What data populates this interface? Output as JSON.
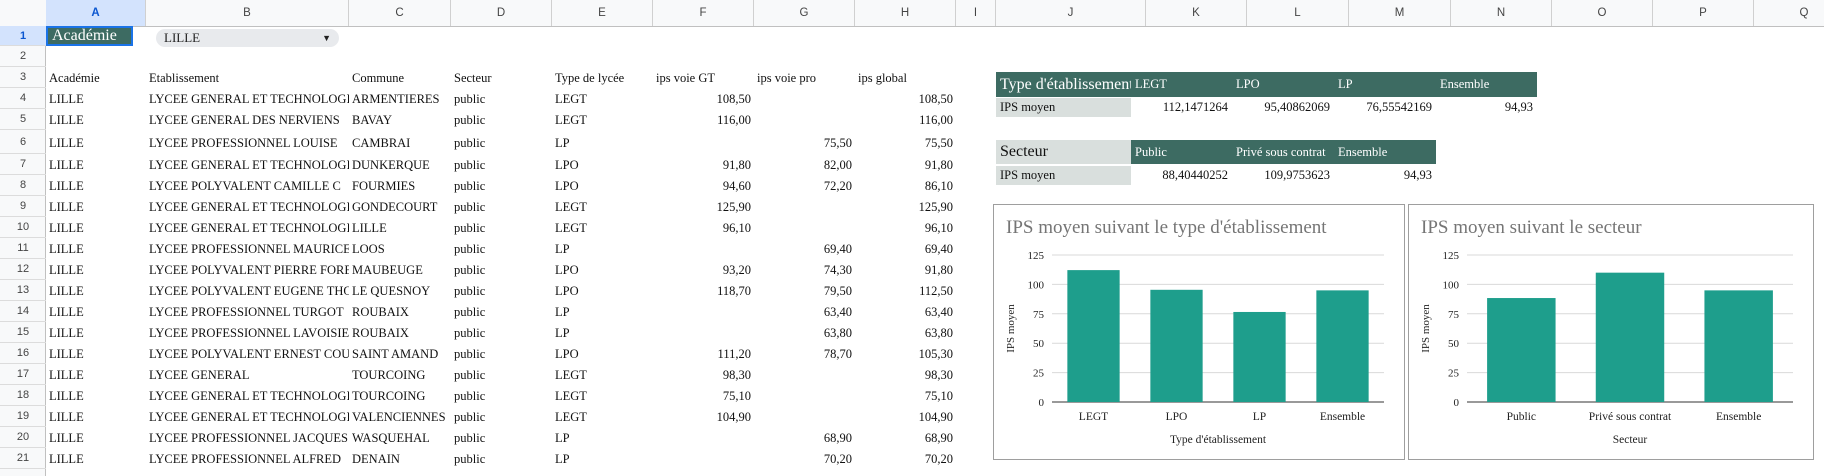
{
  "columns": [
    "A",
    "B",
    "C",
    "D",
    "E",
    "F",
    "G",
    "H",
    "I",
    "J",
    "K",
    "L",
    "M",
    "N",
    "O",
    "P",
    "Q"
  ],
  "row_numbers": [
    "1",
    "2",
    "3",
    "4",
    "5",
    "6",
    "7",
    "8",
    "9",
    "10",
    "11",
    "12",
    "13",
    "14",
    "15",
    "16",
    "17",
    "18",
    "19",
    "20",
    "21"
  ],
  "selector": {
    "label": "Académie",
    "value": "LILLE"
  },
  "table": {
    "headers": [
      "Académie",
      "Etablissement",
      "Commune",
      "Secteur",
      "Type de lycée",
      "ips voie GT",
      "ips voie pro",
      "ips global"
    ],
    "rows": [
      [
        "LILLE",
        "LYCEE GENERAL ET TECHNOLOGIQUE",
        "ARMENTIERES",
        "public",
        "LEGT",
        "108,50",
        "",
        "108,50"
      ],
      [
        "LILLE",
        "LYCEE GENERAL DES NERVIENS",
        "BAVAY",
        "public",
        "LEGT",
        "116,00",
        "",
        "116,00"
      ],
      [
        "LILLE",
        "LYCEE PROFESSIONNEL LOUISE",
        "CAMBRAI",
        "public",
        "LP",
        "",
        "75,50",
        "75,50"
      ],
      [
        "LILLE",
        "LYCEE GENERAL ET TECHNOLOGIQUE",
        "DUNKERQUE",
        "public",
        "LPO",
        "91,80",
        "82,00",
        "91,80"
      ],
      [
        "LILLE",
        "LYCEE POLYVALENT CAMILLE C",
        "FOURMIES",
        "public",
        "LPO",
        "94,60",
        "72,20",
        "86,10"
      ],
      [
        "LILLE",
        "LYCEE GENERAL ET TECHNOLOGIQUE",
        "GONDECOURT",
        "public",
        "LEGT",
        "125,90",
        "",
        "125,90"
      ],
      [
        "LILLE",
        "LYCEE GENERAL ET TECHNOLOGIQUE",
        "LILLE",
        "public",
        "LEGT",
        "96,10",
        "",
        "96,10"
      ],
      [
        "LILLE",
        "LYCEE PROFESSIONNEL MAURICE",
        "LOOS",
        "public",
        "LP",
        "",
        "69,40",
        "69,40"
      ],
      [
        "LILLE",
        "LYCEE POLYVALENT PIERRE FOREST",
        "MAUBEUGE",
        "public",
        "LPO",
        "93,20",
        "74,30",
        "91,80"
      ],
      [
        "LILLE",
        "LYCEE POLYVALENT EUGENE THOMAS",
        "LE QUESNOY",
        "public",
        "LPO",
        "118,70",
        "79,50",
        "112,50"
      ],
      [
        "LILLE",
        "LYCEE PROFESSIONNEL TURGOT",
        "ROUBAIX",
        "public",
        "LP",
        "",
        "63,40",
        "63,40"
      ],
      [
        "LILLE",
        "LYCEE PROFESSIONNEL LAVOISIER",
        "ROUBAIX",
        "public",
        "LP",
        "",
        "63,80",
        "63,80"
      ],
      [
        "LILLE",
        "LYCEE POLYVALENT ERNEST COUTEAUX",
        "SAINT AMAND",
        "public",
        "LPO",
        "111,20",
        "78,70",
        "105,30"
      ],
      [
        "LILLE",
        "LYCEE GENERAL",
        "TOURCOING",
        "public",
        "LEGT",
        "98,30",
        "",
        "98,30"
      ],
      [
        "LILLE",
        "LYCEE GENERAL ET TECHNOLOGIQUE",
        "TOURCOING",
        "public",
        "LEGT",
        "75,10",
        "",
        "75,10"
      ],
      [
        "LILLE",
        "LYCEE GENERAL ET TECHNOLOGIQUE",
        "VALENCIENNES",
        "public",
        "LEGT",
        "104,90",
        "",
        "104,90"
      ],
      [
        "LILLE",
        "LYCEE PROFESSIONNEL JACQUES",
        "WASQUEHAL",
        "public",
        "LP",
        "",
        "68,90",
        "68,90"
      ],
      [
        "LILLE",
        "LYCEE PROFESSIONNEL ALFRED",
        "DENAIN",
        "public",
        "LP",
        "",
        "70,20",
        "70,20"
      ]
    ]
  },
  "summary_type": {
    "title": "Type d'établissement",
    "headers": [
      "LEGT",
      "LPO",
      "LP",
      "Ensemble"
    ],
    "row_label": "IPS moyen",
    "values": [
      "112,1471264",
      "95,40862069",
      "76,55542169",
      "94,93"
    ]
  },
  "summary_secteur": {
    "title": "Secteur",
    "headers": [
      "Public",
      "Privé sous contrat",
      "Ensemble"
    ],
    "row_label": "IPS moyen",
    "values": [
      "88,40440252",
      "109,9753623",
      "94,93"
    ]
  },
  "chart_data": [
    {
      "type": "bar",
      "title": "IPS moyen suivant le type d'établissement",
      "xlabel": "Type d'établissement",
      "ylabel": "IPS moyen",
      "categories": [
        "LEGT",
        "LPO",
        "LP",
        "Ensemble"
      ],
      "values": [
        112.15,
        95.41,
        76.56,
        94.93
      ],
      "ylim": [
        0,
        125
      ],
      "yticks": [
        "0",
        "25",
        "50",
        "75",
        "100",
        "125"
      ],
      "color": "#1e9e8c",
      "grid": true
    },
    {
      "type": "bar",
      "title": "IPS moyen suivant le secteur",
      "xlabel": "Secteur",
      "ylabel": "IPS moyen",
      "categories": [
        "Public",
        "Privé sous contrat",
        "Ensemble"
      ],
      "values": [
        88.4,
        109.98,
        94.93
      ],
      "ylim": [
        0,
        125
      ],
      "yticks": [
        "0",
        "25",
        "50",
        "75",
        "100",
        "125"
      ],
      "color": "#1e9e8c",
      "grid": true
    }
  ]
}
